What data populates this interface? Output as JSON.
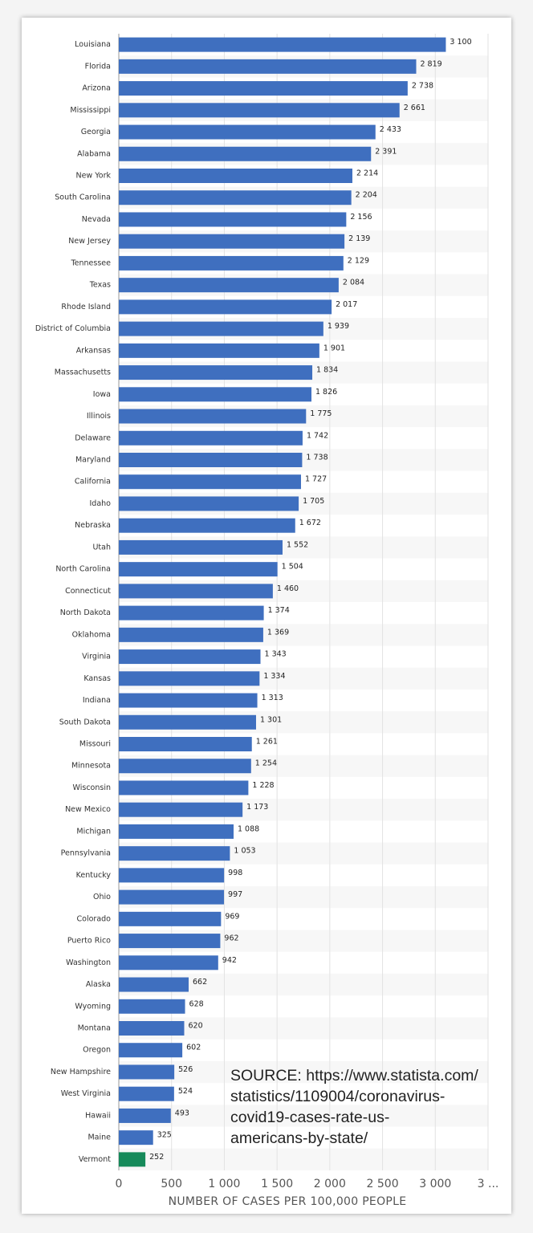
{
  "chart_data": {
    "type": "bar",
    "orientation": "horizontal",
    "x_label": "NUMBER OF CASES PER 100,000 PEOPLE",
    "categories": [
      "Louisiana",
      "Florida",
      "Arizona",
      "Mississippi",
      "Georgia",
      "Alabama",
      "New York",
      "South Carolina",
      "Nevada",
      "New Jersey",
      "Tennessee",
      "Texas",
      "Rhode Island",
      "District of Columbia",
      "Arkansas",
      "Massachusetts",
      "Iowa",
      "Illinois",
      "Delaware",
      "Maryland",
      "California",
      "Idaho",
      "Nebraska",
      "Utah",
      "North Carolina",
      "Connecticut",
      "North Dakota",
      "Oklahoma",
      "Virginia",
      "Kansas",
      "Indiana",
      "South Dakota",
      "Missouri",
      "Minnesota",
      "Wisconsin",
      "New Mexico",
      "Michigan",
      "Pennsylvania",
      "Kentucky",
      "Ohio",
      "Colorado",
      "Puerto Rico",
      "Washington",
      "Alaska",
      "Wyoming",
      "Montana",
      "Oregon",
      "New Hampshire",
      "West Virginia",
      "Hawaii",
      "Maine",
      "Vermont"
    ],
    "values": [
      3100,
      2819,
      2738,
      2661,
      2433,
      2391,
      2214,
      2204,
      2156,
      2139,
      2129,
      2084,
      2017,
      1939,
      1901,
      1834,
      1826,
      1775,
      1742,
      1738,
      1727,
      1705,
      1672,
      1552,
      1504,
      1460,
      1374,
      1369,
      1343,
      1334,
      1313,
      1301,
      1261,
      1254,
      1228,
      1173,
      1088,
      1053,
      998,
      997,
      969,
      962,
      942,
      662,
      628,
      620,
      602,
      526,
      524,
      493,
      325,
      252
    ],
    "value_labels": [
      "3 100",
      "2 819",
      "2 738",
      "2 661",
      "2 433",
      "2 391",
      "2 214",
      "2 204",
      "2 156",
      "2 139",
      "2 129",
      "2 084",
      "2 017",
      "1 939",
      "1 901",
      "1 834",
      "1 826",
      "1 775",
      "1 742",
      "1 738",
      "1 727",
      "1 705",
      "1 672",
      "1 552",
      "1 504",
      "1 460",
      "1 374",
      "1 369",
      "1 343",
      "1 334",
      "1 313",
      "1 301",
      "1 261",
      "1 254",
      "1 228",
      "1 173",
      "1 088",
      "1 053",
      "998",
      "997",
      "969",
      "962",
      "942",
      "662",
      "628",
      "620",
      "602",
      "526",
      "524",
      "493",
      "325",
      "252"
    ],
    "colors": [
      "#3f6fbf",
      "#3f6fbf",
      "#3f6fbf",
      "#3f6fbf",
      "#3f6fbf",
      "#3f6fbf",
      "#3f6fbf",
      "#3f6fbf",
      "#3f6fbf",
      "#3f6fbf",
      "#3f6fbf",
      "#3f6fbf",
      "#3f6fbf",
      "#3f6fbf",
      "#3f6fbf",
      "#3f6fbf",
      "#3f6fbf",
      "#3f6fbf",
      "#3f6fbf",
      "#3f6fbf",
      "#3f6fbf",
      "#3f6fbf",
      "#3f6fbf",
      "#3f6fbf",
      "#3f6fbf",
      "#3f6fbf",
      "#3f6fbf",
      "#3f6fbf",
      "#3f6fbf",
      "#3f6fbf",
      "#3f6fbf",
      "#3f6fbf",
      "#3f6fbf",
      "#3f6fbf",
      "#3f6fbf",
      "#3f6fbf",
      "#3f6fbf",
      "#3f6fbf",
      "#3f6fbf",
      "#3f6fbf",
      "#3f6fbf",
      "#3f6fbf",
      "#3f6fbf",
      "#3f6fbf",
      "#3f6fbf",
      "#3f6fbf",
      "#3f6fbf",
      "#3f6fbf",
      "#3f6fbf",
      "#3f6fbf",
      "#3f6fbf",
      "#168a5a"
    ],
    "xlim": [
      0,
      3500
    ],
    "xticks": [
      0,
      500,
      {
        "value": 1000,
        "label": "1 000"
      },
      {
        "value": 1500,
        "label": "1 500"
      },
      {
        "value": 2000,
        "label": "2 000"
      },
      {
        "value": 2500,
        "label": "2 500"
      },
      {
        "value": 3000,
        "label": "3 000"
      },
      {
        "value": 3500,
        "label": "3 ..."
      }
    ],
    "grid": true,
    "annotation": [
      "SOURCE: https://www.statista.com/",
      "statistics/1109004/coronavirus-",
      "covid19-cases-rate-us-",
      "americans-by-state/"
    ]
  }
}
